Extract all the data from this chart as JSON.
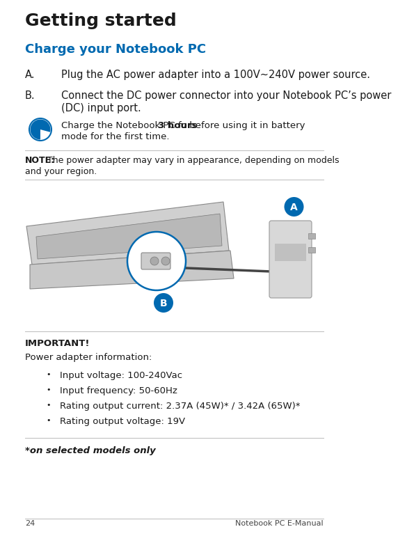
{
  "bg_color": "#ffffff",
  "blue": "#0069b0",
  "black": "#1a1a1a",
  "gray_text": "#444444",
  "line_color": "#bbbbbb",
  "page_num": "24",
  "page_header": "Notebook PC E-Manual",
  "section_title": "Getting started",
  "subsection_title": "Charge your Notebook PC",
  "item_A_label": "A.",
  "item_A_text": "Plug the AC power adapter into a 100V~240V power source.",
  "item_B_label": "B.",
  "item_B_line1": "Connect the DC power connector into your Notebook PC’s power",
  "item_B_line2": "(DC) input port.",
  "tip_part1": "Charge the Notebook PC for ",
  "tip_bold": "3 hours",
  "tip_part2": " before using it in battery",
  "tip_line2": "mode for the first time.",
  "note_bold": "NOTE:",
  "note_rest_line1": " The power adapter may vary in appearance, depending on models",
  "note_line2": "and your region.",
  "important_label": "IMPORTANT!",
  "power_label": "Power adapter information:",
  "bullets": [
    "Input voltage: 100-240Vac",
    "Input frequency: 50-60Hz",
    "Rating output current: 2.37A (45W)* / 3.42A (65W)*",
    "Rating output voltage: 19V"
  ],
  "footer_note": "*on selected models only",
  "ml": 0.055,
  "mr": 0.965
}
